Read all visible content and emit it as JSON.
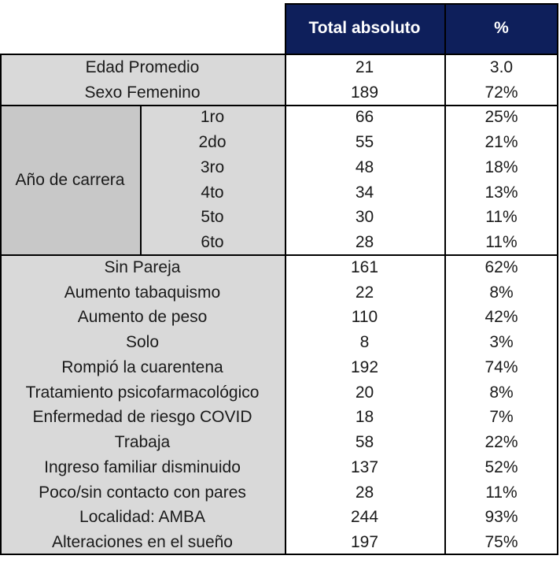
{
  "header": {
    "total_label": "Total absoluto",
    "pct_label": "%"
  },
  "rows_top": [
    {
      "label": "Edad Promedio",
      "total": "21",
      "pct": "3.0"
    },
    {
      "label": "Sexo Femenino",
      "total": "189",
      "pct": "72%"
    }
  ],
  "year_group": {
    "label": "Año de carrera",
    "rows": [
      {
        "label": "1ro",
        "total": "66",
        "pct": "25%"
      },
      {
        "label": "2do",
        "total": "55",
        "pct": "21%"
      },
      {
        "label": "3ro",
        "total": "48",
        "pct": "18%"
      },
      {
        "label": "4to",
        "total": "34",
        "pct": "13%"
      },
      {
        "label": "5to",
        "total": "30",
        "pct": "11%"
      },
      {
        "label": "6to",
        "total": "28",
        "pct": "11%"
      }
    ]
  },
  "rows_bottom": [
    {
      "label": "Sin Pareja",
      "total": "161",
      "pct": "62%"
    },
    {
      "label": "Aumento tabaquismo",
      "total": "22",
      "pct": "8%"
    },
    {
      "label": "Aumento de peso",
      "total": "110",
      "pct": "42%"
    },
    {
      "label": "Solo",
      "total": "8",
      "pct": "3%"
    },
    {
      "label": "Rompió la cuarentena",
      "total": "192",
      "pct": "74%"
    },
    {
      "label": "Tratamiento psicofarmacológico",
      "total": "20",
      "pct": "8%"
    },
    {
      "label": "Enfermedad de riesgo COVID",
      "total": "18",
      "pct": "7%"
    },
    {
      "label": "Trabaja",
      "total": "58",
      "pct": "22%"
    },
    {
      "label": "Ingreso familiar disminuido",
      "total": "137",
      "pct": "52%"
    },
    {
      "label": "Poco/sin contacto con pares",
      "total": "28",
      "pct": "11%"
    },
    {
      "label": "Localidad: AMBA",
      "total": "244",
      "pct": "93%"
    },
    {
      "label": "Alteraciones en el sueño",
      "total": "197",
      "pct": "75%"
    }
  ]
}
